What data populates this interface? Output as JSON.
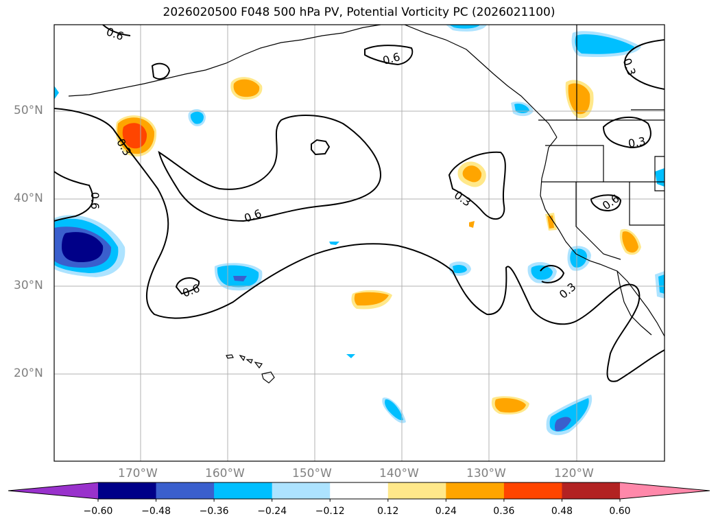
{
  "title": "2026020500 F048 500 hPa PV, Potential Vorticity PC (2026021100)",
  "lat_labels": [
    "50°N",
    "40°N",
    "30°N",
    "20°N"
  ],
  "lon_labels": [
    "170°W",
    "160°W",
    "150°W",
    "140°W",
    "130°W",
    "120°W"
  ],
  "contour_labels": [
    "0.6",
    "0.6",
    "0.3",
    "0.3",
    "0.6",
    "0.6",
    "0.3",
    "0.3",
    "0.6",
    "0.6",
    "0.3"
  ],
  "colorbar": {
    "ticks": [
      "−0.60",
      "−0.48",
      "−0.36",
      "−0.24",
      "−0.12",
      "0.12",
      "0.24",
      "0.36",
      "0.48",
      "0.60"
    ],
    "colors": [
      "#9932cc",
      "#000088",
      "#3a5fcd",
      "#00bfff",
      "#ade3ff",
      "#ffffff",
      "#ffe88a",
      "#ffa500",
      "#ff4500",
      "#b22222",
      "#ff88aa"
    ]
  }
}
